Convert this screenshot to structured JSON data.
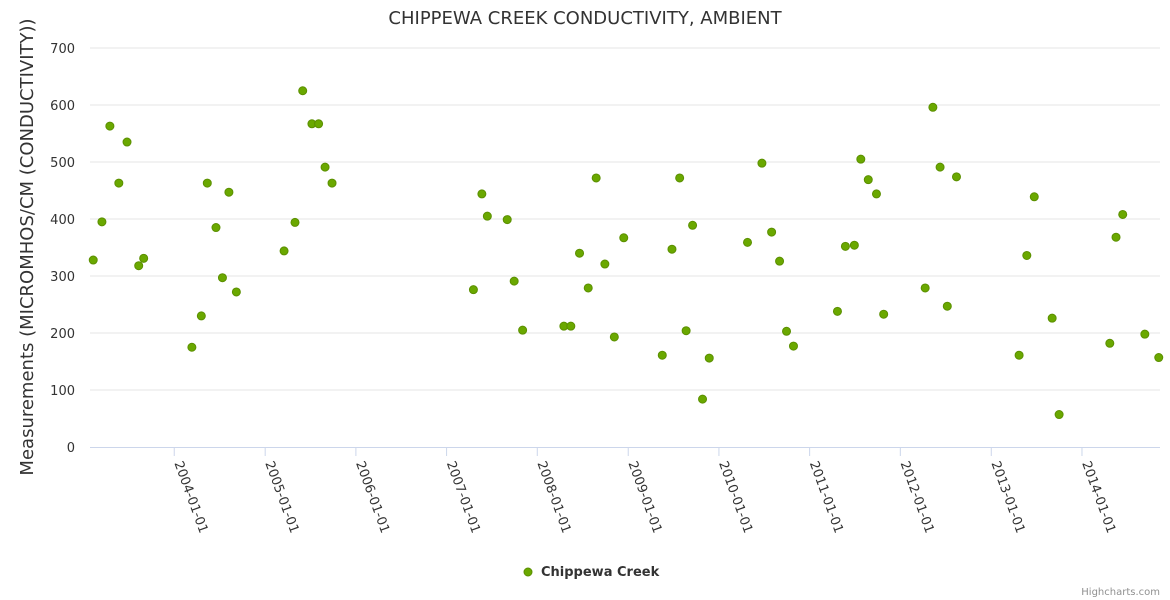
{
  "chart_data": {
    "type": "scatter",
    "title": "CHIPPEWA CREEK CONDUCTIVITY, AMBIENT",
    "xlabel": "",
    "ylabel": "Measurements (MICROMHOS/CM (CONDUCTIVITY))",
    "ylim": [
      0,
      700
    ],
    "yticks": [
      0,
      100,
      200,
      300,
      400,
      500,
      600,
      700
    ],
    "xlim": [
      "2003-01-27",
      "2014-11-11"
    ],
    "xticks": [
      "2004-01-01",
      "2005-01-01",
      "2006-01-01",
      "2007-01-01",
      "2008-01-01",
      "2009-01-01",
      "2010-01-01",
      "2011-01-01",
      "2012-01-01",
      "2013-01-01",
      "2014-01-01"
    ],
    "grid": true,
    "legend_position": "bottom-center",
    "series": [
      {
        "name": "Chippewa Creek",
        "color": "#6aa800",
        "points": [
          [
            "2003-02-09",
            328
          ],
          [
            "2003-03-16",
            395
          ],
          [
            "2003-04-17",
            563
          ],
          [
            "2003-05-23",
            463
          ],
          [
            "2003-06-25",
            535
          ],
          [
            "2003-08-11",
            318
          ],
          [
            "2003-08-31",
            331
          ],
          [
            "2004-03-12",
            175
          ],
          [
            "2004-04-19",
            230
          ],
          [
            "2004-05-13",
            463
          ],
          [
            "2004-06-17",
            385
          ],
          [
            "2004-07-13",
            297
          ],
          [
            "2004-08-08",
            447
          ],
          [
            "2004-09-07",
            272
          ],
          [
            "2005-03-18",
            344
          ],
          [
            "2005-05-01",
            394
          ],
          [
            "2005-06-01",
            625
          ],
          [
            "2005-07-08",
            567
          ],
          [
            "2005-08-04",
            567
          ],
          [
            "2005-08-30",
            491
          ],
          [
            "2005-09-27",
            463
          ],
          [
            "2007-04-19",
            276
          ],
          [
            "2007-05-23",
            444
          ],
          [
            "2007-06-14",
            405
          ],
          [
            "2007-09-02",
            399
          ],
          [
            "2007-09-30",
            291
          ],
          [
            "2007-11-03",
            205
          ],
          [
            "2008-04-17",
            212
          ],
          [
            "2008-05-15",
            212
          ],
          [
            "2008-06-19",
            340
          ],
          [
            "2008-07-24",
            279
          ],
          [
            "2008-08-25",
            472
          ],
          [
            "2008-09-29",
            321
          ],
          [
            "2008-11-06",
            193
          ],
          [
            "2008-12-14",
            367
          ],
          [
            "2009-05-18",
            161
          ],
          [
            "2009-06-26",
            347
          ],
          [
            "2009-07-27",
            472
          ],
          [
            "2009-08-22",
            204
          ],
          [
            "2009-09-17",
            389
          ],
          [
            "2009-10-27",
            84
          ],
          [
            "2009-11-23",
            156
          ],
          [
            "2010-04-26",
            359
          ],
          [
            "2010-06-23",
            498
          ],
          [
            "2010-08-01",
            377
          ],
          [
            "2010-09-02",
            326
          ],
          [
            "2010-09-30",
            203
          ],
          [
            "2010-10-28",
            177
          ],
          [
            "2011-04-23",
            238
          ],
          [
            "2011-05-25",
            352
          ],
          [
            "2011-06-30",
            354
          ],
          [
            "2011-07-26",
            505
          ],
          [
            "2011-08-25",
            469
          ],
          [
            "2011-09-27",
            444
          ],
          [
            "2011-10-26",
            233
          ],
          [
            "2012-04-10",
            279
          ],
          [
            "2012-05-11",
            596
          ],
          [
            "2012-06-09",
            491
          ],
          [
            "2012-07-08",
            247
          ],
          [
            "2012-08-14",
            474
          ],
          [
            "2013-04-23",
            161
          ],
          [
            "2013-05-24",
            336
          ],
          [
            "2013-06-23",
            439
          ],
          [
            "2013-09-03",
            226
          ],
          [
            "2013-10-01",
            57
          ],
          [
            "2014-04-23",
            182
          ],
          [
            "2014-05-18",
            368
          ],
          [
            "2014-06-14",
            408
          ],
          [
            "2014-09-11",
            198
          ],
          [
            "2014-11-06",
            157
          ]
        ]
      }
    ]
  },
  "credit": "Highcharts.com"
}
